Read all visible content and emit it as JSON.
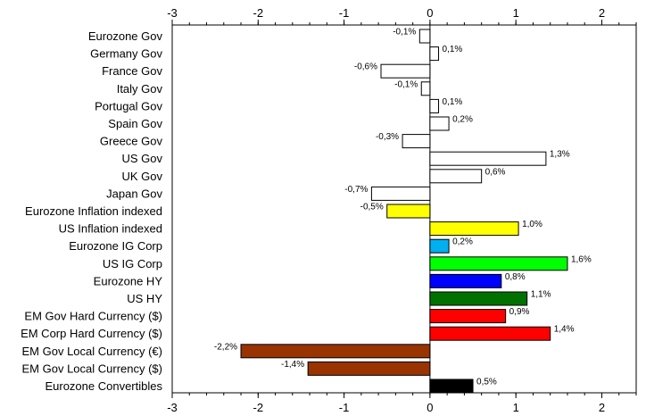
{
  "chart_data": {
    "type": "bar",
    "orientation": "horizontal",
    "title": "",
    "xlabel": "",
    "ylabel": "",
    "xlim": [
      -3,
      2.4
    ],
    "x_ticks": [
      -3,
      -2,
      -1,
      0,
      1,
      2
    ],
    "x_tick_labels": [
      "-3",
      "-2",
      "-1",
      "0",
      "1",
      "2"
    ],
    "x_axis_position": "top-and-bottom",
    "grid": false,
    "categories": [
      "Eurozone Gov",
      "Germany Gov",
      "France Gov",
      "Italy Gov",
      "Portugal Gov",
      "Spain Gov",
      "Greece Gov",
      "US Gov",
      "UK Gov",
      "Japan Gov",
      "Eurozone Inflation indexed",
      "US Inflation indexed",
      "Eurozone IG Corp",
      "US IG Corp",
      "Eurozone HY",
      "US HY",
      "EM Gov Hard Currency ($)",
      "EM Corp Hard Currency ($)",
      "EM Gov Local Currency (€)",
      "EM Gov Local Currency ($)",
      "Eurozone Convertibles"
    ],
    "values": [
      -0.12,
      0.1,
      -0.57,
      -0.1,
      0.1,
      0.22,
      -0.32,
      1.35,
      0.6,
      -0.68,
      -0.5,
      1.03,
      0.22,
      1.6,
      0.83,
      1.13,
      0.88,
      1.4,
      -2.2,
      -1.42,
      0.5
    ],
    "value_labels": [
      "-0,1%",
      "0,1%",
      "-0,6%",
      "-0,1%",
      "0,1%",
      "0,2%",
      "-0,3%",
      "1,3%",
      "0,6%",
      "-0,7%",
      "-0,5%",
      "1,0%",
      "0,2%",
      "1,6%",
      "0,8%",
      "1,1%",
      "0,9%",
      "1,4%",
      "-2,2%",
      "-1,4%",
      "0,5%"
    ],
    "colors": [
      "#ffffff",
      "#ffffff",
      "#ffffff",
      "#ffffff",
      "#ffffff",
      "#ffffff",
      "#ffffff",
      "#ffffff",
      "#ffffff",
      "#ffffff",
      "#ffff00",
      "#ffff00",
      "#00b0f0",
      "#00ff00",
      "#0000ff",
      "#007000",
      "#ff0000",
      "#ff0000",
      "#993300",
      "#993300",
      "#000000"
    ],
    "bar_edge_color": "#000000"
  }
}
